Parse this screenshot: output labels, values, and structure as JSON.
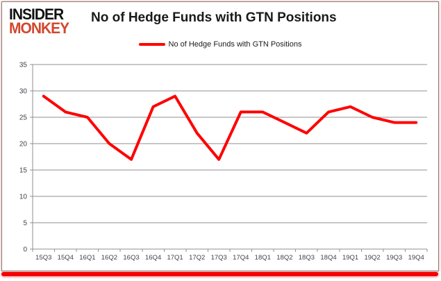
{
  "brand": {
    "line1": "INSIDER",
    "line2": "MONKEY"
  },
  "header": {
    "title": "No of Hedge Funds with GTN Positions"
  },
  "legend": {
    "label": "No of Hedge Funds with GTN Positions"
  },
  "colors": {
    "series": "#ff0000",
    "grid": "#8f8f8f",
    "axis_text": "#3f414e",
    "brand_black": "#111111",
    "brand_red": "#d2472e",
    "accent_bar": "#f50000",
    "card_border": "#7f7f7f"
  },
  "chart_data": {
    "type": "line",
    "title": "No of Hedge Funds with GTN Positions",
    "categories": [
      "15Q3",
      "15Q4",
      "16Q1",
      "16Q2",
      "16Q3",
      "16Q4",
      "17Q1",
      "17Q2",
      "17Q3",
      "17Q4",
      "18Q1",
      "18Q2",
      "18Q3",
      "18Q4",
      "19Q1",
      "19Q2",
      "19Q3",
      "19Q4"
    ],
    "series": [
      {
        "name": "No of Hedge Funds with GTN Positions",
        "values": [
          29,
          26,
          25,
          20,
          17,
          27,
          29,
          22,
          17,
          26,
          26,
          24,
          22,
          26,
          27,
          25,
          24,
          24
        ]
      }
    ],
    "xlabel": "",
    "ylabel": "",
    "ylim": [
      0,
      35
    ],
    "yticks": [
      0,
      5,
      10,
      15,
      20,
      25,
      30,
      35
    ],
    "grid": true,
    "legend_position": "top-center"
  }
}
